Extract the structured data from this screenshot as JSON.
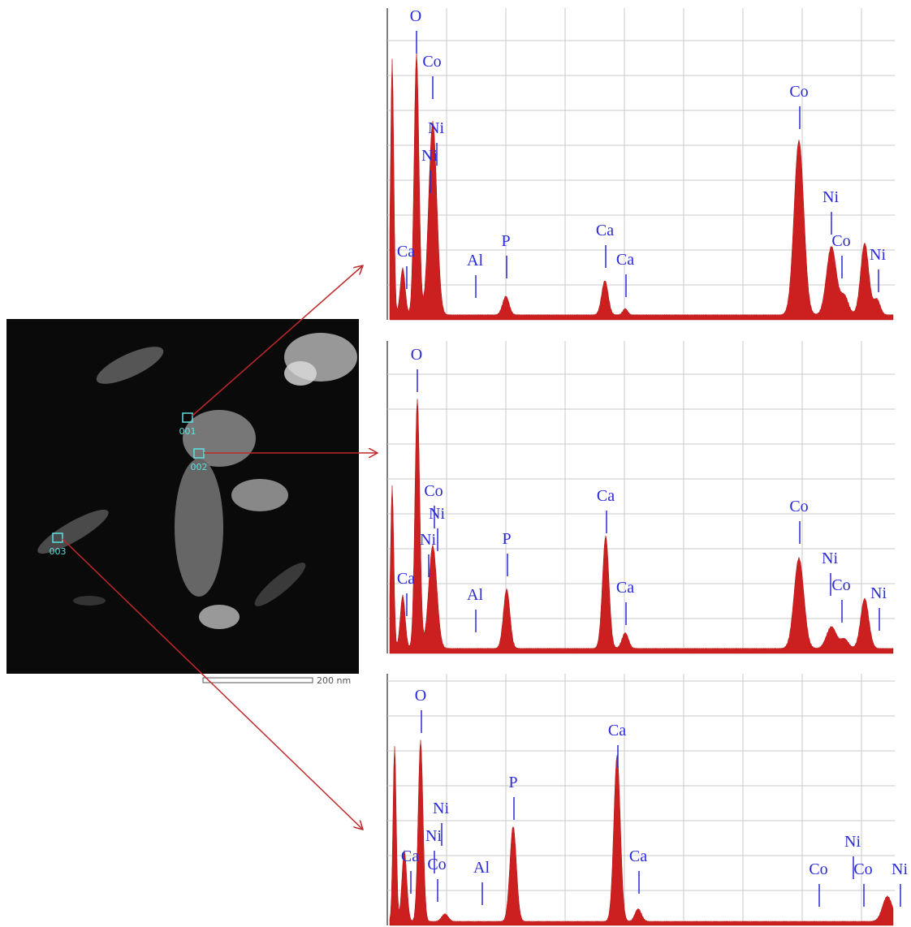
{
  "image": {
    "points": [
      "001",
      "002",
      "003"
    ],
    "scale_bar": "200 nm"
  },
  "spectra": [
    {
      "labels": [
        "O",
        "Co",
        "Ni",
        "Ni",
        "Ca",
        "Al",
        "P",
        "Ca",
        "Ca",
        "Co",
        "Ni",
        "Co",
        "Ni"
      ]
    },
    {
      "labels": [
        "O",
        "Co",
        "Ni",
        "Ni",
        "Ca",
        "Al",
        "P",
        "Ca",
        "Ca",
        "Co",
        "Ni",
        "Co",
        "Ni"
      ]
    },
    {
      "labels": [
        "O",
        "Ni",
        "Ni",
        "Ca",
        "Co",
        "Al",
        "P",
        "Ca",
        "Ca",
        "Co",
        "Ni",
        "Co",
        "Ni"
      ]
    }
  ]
}
